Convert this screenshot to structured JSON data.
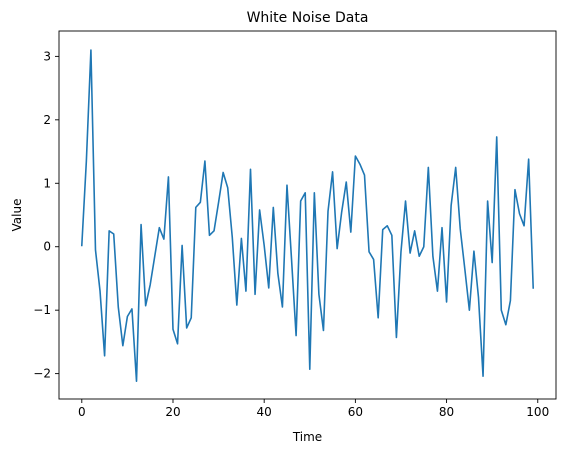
{
  "chart_data": {
    "type": "line",
    "title": "White Noise Data",
    "xlabel": "Time",
    "ylabel": "Value",
    "xlim": [
      -5,
      104
    ],
    "ylim": [
      -2.4,
      3.4
    ],
    "xticks": [
      0,
      20,
      40,
      60,
      80,
      100
    ],
    "yticks": [
      -2,
      -1,
      0,
      1,
      2,
      3
    ],
    "xtick_labels": [
      "0",
      "20",
      "40",
      "60",
      "80",
      "100"
    ],
    "ytick_labels": [
      "−2",
      "−1",
      "0",
      "1",
      "2",
      "3"
    ],
    "grid": false,
    "legend": "none",
    "line_color": "#1f77b4",
    "series": [
      {
        "x": [
          0,
          1,
          2,
          3,
          4,
          5,
          6,
          7,
          8,
          9,
          10,
          11,
          12,
          13,
          14,
          15,
          16,
          17,
          18,
          19,
          20,
          21,
          22,
          23,
          24,
          25,
          26,
          27,
          28,
          29,
          30,
          31,
          32,
          33,
          34,
          35,
          36,
          37,
          38,
          39,
          40,
          41,
          42,
          43,
          44,
          45,
          46,
          47,
          48,
          49,
          50,
          51,
          52,
          53,
          54,
          55,
          56,
          57,
          58,
          59,
          60,
          61,
          62,
          63,
          64,
          65,
          66,
          67,
          68,
          69,
          70,
          71,
          72,
          73,
          74,
          75,
          76,
          77,
          78,
          79,
          80,
          81,
          82,
          83,
          84,
          85,
          86,
          87,
          88,
          89,
          90,
          91,
          92,
          93,
          94,
          95,
          96,
          97,
          98,
          99
        ],
        "y": [
          0.02,
          1.35,
          3.1,
          -0.05,
          -0.7,
          -1.72,
          0.25,
          0.2,
          -0.95,
          -1.56,
          -1.1,
          -0.98,
          -2.12,
          0.35,
          -0.93,
          -0.6,
          -0.15,
          0.3,
          0.12,
          1.1,
          -1.3,
          -1.53,
          0.02,
          -1.28,
          -1.12,
          0.62,
          0.7,
          1.35,
          0.18,
          0.25,
          0.7,
          1.17,
          0.93,
          0.15,
          -0.92,
          0.13,
          -0.7,
          1.22,
          -0.75,
          0.58,
          0.02,
          -0.65,
          0.62,
          -0.42,
          -0.95,
          0.97,
          -0.2,
          -1.4,
          0.72,
          0.85,
          -1.93,
          0.85,
          -0.75,
          -1.32,
          0.56,
          1.18,
          -0.03,
          0.55,
          1.02,
          0.23,
          1.43,
          1.3,
          1.13,
          -0.08,
          -0.2,
          -1.12,
          0.27,
          0.33,
          0.18,
          -1.43,
          -0.08,
          0.72,
          -0.1,
          0.25,
          -0.15,
          0.0,
          1.25,
          -0.15,
          -0.7,
          0.3,
          -0.87,
          0.65,
          1.25,
          0.28,
          -0.35,
          -1.0,
          -0.07,
          -0.8,
          -2.04,
          0.72,
          -0.25,
          1.73,
          -1.0,
          -1.23,
          -0.85,
          0.9,
          0.52,
          0.33,
          1.38,
          -0.65
        ]
      }
    ]
  }
}
